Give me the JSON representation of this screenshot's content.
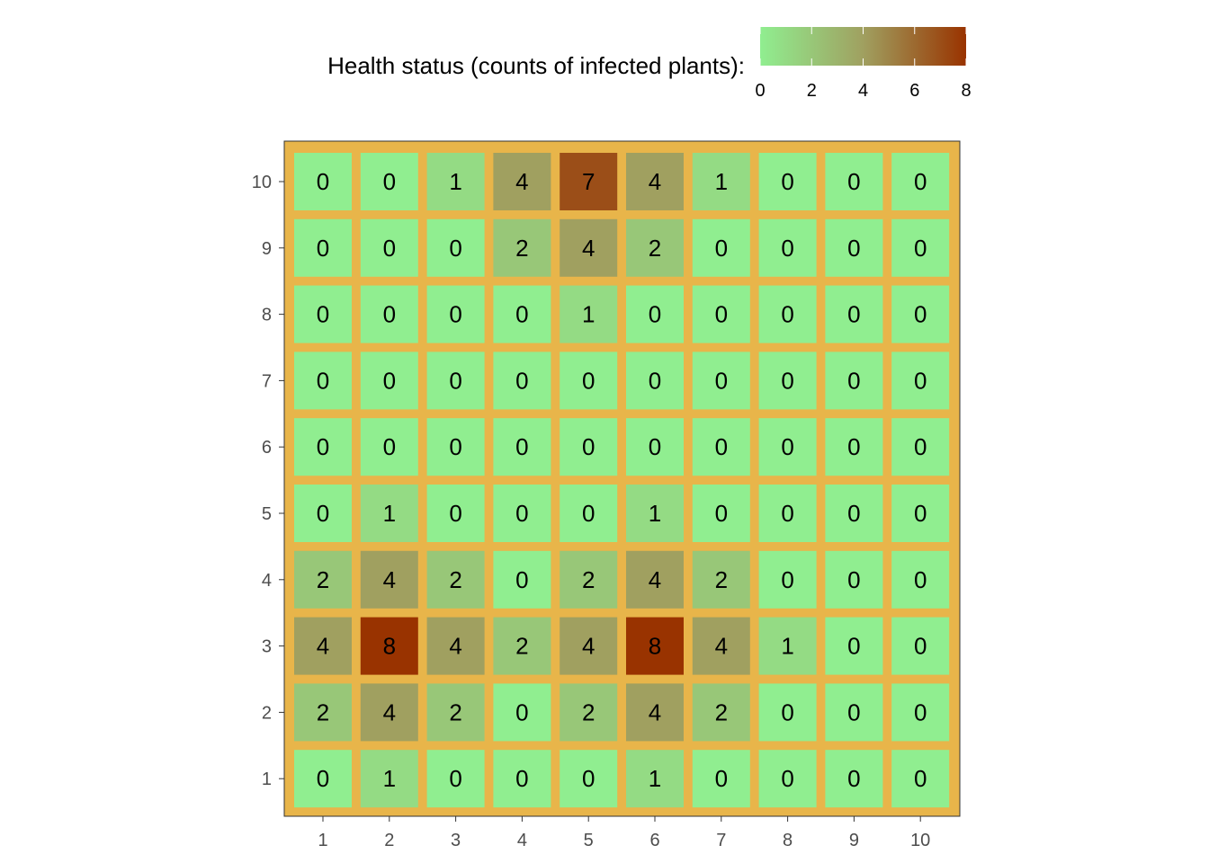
{
  "chart_data": {
    "type": "heatmap",
    "legend": {
      "title": "Health status (counts of infected plants):",
      "ticks": [
        0,
        2,
        4,
        6,
        8
      ],
      "range": [
        0,
        8
      ],
      "placement": "top",
      "colors": [
        "#90EE90",
        "#A0A060",
        "#993300"
      ]
    },
    "x": [
      1,
      2,
      3,
      4,
      5,
      6,
      7,
      8,
      9,
      10
    ],
    "y": [
      1,
      2,
      3,
      4,
      5,
      6,
      7,
      8,
      9,
      10
    ],
    "xlabel": "",
    "ylabel": "",
    "panel_background": "#E8B54A",
    "grid": false,
    "values_by_row_top_to_bottom": [
      {
        "y": 10,
        "values": [
          0,
          0,
          1,
          4,
          7,
          4,
          1,
          0,
          0,
          0
        ]
      },
      {
        "y": 9,
        "values": [
          0,
          0,
          0,
          2,
          4,
          2,
          0,
          0,
          0,
          0
        ]
      },
      {
        "y": 8,
        "values": [
          0,
          0,
          0,
          0,
          1,
          0,
          0,
          0,
          0,
          0
        ]
      },
      {
        "y": 7,
        "values": [
          0,
          0,
          0,
          0,
          0,
          0,
          0,
          0,
          0,
          0
        ]
      },
      {
        "y": 6,
        "values": [
          0,
          0,
          0,
          0,
          0,
          0,
          0,
          0,
          0,
          0
        ]
      },
      {
        "y": 5,
        "values": [
          0,
          1,
          0,
          0,
          0,
          1,
          0,
          0,
          0,
          0
        ]
      },
      {
        "y": 4,
        "values": [
          2,
          4,
          2,
          0,
          2,
          4,
          2,
          0,
          0,
          0
        ]
      },
      {
        "y": 3,
        "values": [
          4,
          8,
          4,
          2,
          4,
          8,
          4,
          1,
          0,
          0
        ]
      },
      {
        "y": 2,
        "values": [
          2,
          4,
          2,
          0,
          2,
          4,
          2,
          0,
          0,
          0
        ]
      },
      {
        "y": 1,
        "values": [
          0,
          1,
          0,
          0,
          0,
          1,
          0,
          0,
          0,
          0
        ]
      }
    ]
  }
}
